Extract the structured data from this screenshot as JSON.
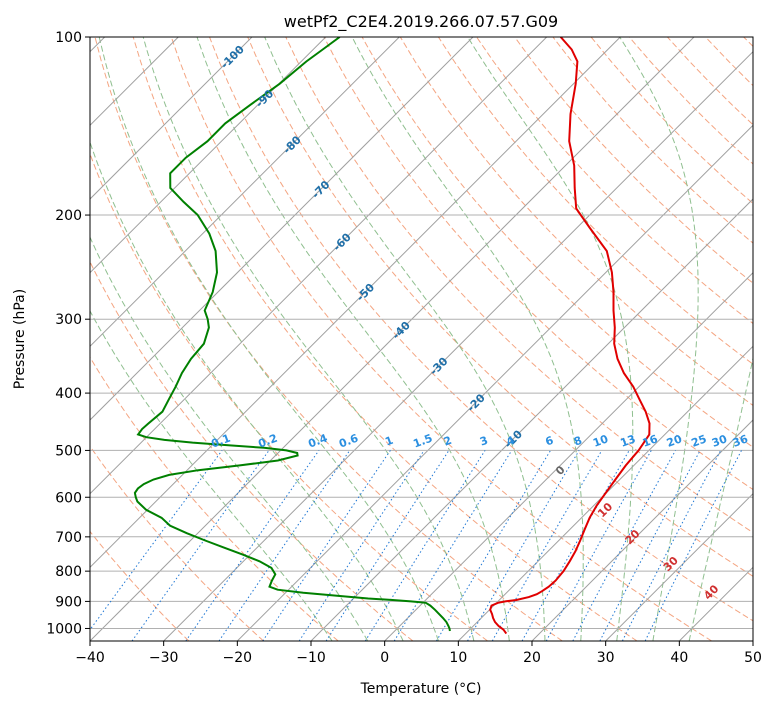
{
  "chart_data": {
    "type": "skew-t",
    "title": "wetPf2_C2E4.2019.266.07.57.G09",
    "xlabel": "Temperature (°C)",
    "ylabel": "Pressure (hPa)",
    "xlim": [
      -40,
      50
    ],
    "ylim": [
      1050,
      100
    ],
    "y_scale": "log",
    "skew": 45,
    "grid": true,
    "xticks": [
      "−40",
      "−30",
      "−20",
      "−10",
      "0",
      "10",
      "20",
      "30",
      "40",
      "50"
    ],
    "xtick_values": [
      -40,
      -30,
      -20,
      -10,
      0,
      10,
      20,
      30,
      40,
      50
    ],
    "yticks": [
      "100",
      "200",
      "300",
      "400",
      "500",
      "600",
      "700",
      "800",
      "900",
      "1000"
    ],
    "ytick_values": [
      100,
      200,
      300,
      400,
      500,
      600,
      700,
      800,
      900,
      1000
    ],
    "colors": {
      "temperature": "#e00000",
      "dewpoint": "#008000",
      "isotherm": "#a0a0a0",
      "dry_adiabat": "#f4a582",
      "moist_adiabat": "#8fbf8f",
      "mixing_ratio": "#1f77d4",
      "isotherm_label": "#1f6fa8",
      "moist_label": "#d03030"
    },
    "series": [
      {
        "name": "temperature",
        "pressure": [
          1020,
          1005,
          990,
          975,
          960,
          945,
          930,
          915,
          905,
          900,
          895,
          885,
          875,
          865,
          850,
          830,
          800,
          770,
          740,
          710,
          680,
          650,
          620,
          590,
          560,
          530,
          500,
          470,
          450,
          430,
          410,
          390,
          370,
          350,
          330,
          310,
          290,
          270,
          250,
          230,
          210,
          195,
          180,
          165,
          150,
          135,
          120,
          110,
          105,
          100
        ],
        "values": [
          15.5,
          14.6,
          13.4,
          12.4,
          11.6,
          10.9,
          10.1,
          9.7,
          10.2,
          11.0,
          12.3,
          13.6,
          14.3,
          14.6,
          14.9,
          15.0,
          14.8,
          14.3,
          13.7,
          12.9,
          12.0,
          11.1,
          10.4,
          9.9,
          9.4,
          8.9,
          8.6,
          7.9,
          6.4,
          4.3,
          1.8,
          -0.8,
          -3.9,
          -6.7,
          -9.2,
          -11.3,
          -13.8,
          -16.3,
          -19.2,
          -22.8,
          -28.3,
          -32.7,
          -35.7,
          -38.8,
          -42.8,
          -46.3,
          -49.7,
          -52.5,
          -54.9,
          -58.1
        ]
      },
      {
        "name": "dewpoint",
        "pressure": [
          1010,
          1000,
          990,
          975,
          960,
          945,
          930,
          915,
          905,
          900,
          895,
          890,
          880,
          870,
          860,
          850,
          830,
          810,
          790,
          770,
          750,
          730,
          710,
          690,
          670,
          650,
          630,
          610,
          600,
          590,
          580,
          570,
          560,
          550,
          540,
          530,
          520,
          510,
          505,
          500,
          495,
          490,
          485,
          480,
          475,
          470,
          460,
          450,
          430,
          410,
          390,
          370,
          350,
          330,
          310,
          300,
          290,
          270,
          250,
          230,
          215,
          200,
          190,
          180,
          170,
          160,
          150,
          140,
          130,
          120,
          110,
          105,
          100
        ],
        "values": [
          7.5,
          7.1,
          6.6,
          5.8,
          4.8,
          3.7,
          2.6,
          1.4,
          0.4,
          -1.8,
          -4.5,
          -8.0,
          -12.8,
          -17.6,
          -21.5,
          -23.0,
          -23.5,
          -23.9,
          -25.3,
          -27.8,
          -31.0,
          -34.5,
          -38.0,
          -41.5,
          -44.8,
          -47.0,
          -50.2,
          -52.5,
          -53.3,
          -54.0,
          -54.2,
          -54.0,
          -53.3,
          -51.8,
          -48.5,
          -43.5,
          -39.0,
          -37.0,
          -37.4,
          -39.2,
          -42.6,
          -47.8,
          -53.0,
          -57.2,
          -60.0,
          -61.5,
          -61.7,
          -61.6,
          -61.3,
          -62.1,
          -62.9,
          -63.9,
          -64.6,
          -64.9,
          -66.4,
          -67.7,
          -69.3,
          -70.7,
          -72.8,
          -75.9,
          -79.1,
          -83.2,
          -86.9,
          -90.6,
          -92.6,
          -92.6,
          -91.9,
          -91.9,
          -91.0,
          -89.9,
          -89.3,
          -88.7,
          -88.1
        ]
      }
    ],
    "isotherm_labels": [
      "-100",
      "-90",
      "-80",
      "-70",
      "-60",
      "-50",
      "-40",
      "-30",
      "-20",
      "-10"
    ],
    "isotherm_label_values": [
      -100,
      -90,
      -80,
      -70,
      -60,
      -50,
      -40,
      -30,
      -20,
      -10
    ],
    "mixing_ratio_labels": [
      "0.1",
      "0.2",
      "0.4",
      "0.6",
      "1",
      "1.5",
      "2",
      "3",
      "4",
      "6",
      "8",
      "10",
      "13",
      "16",
      "20",
      "25",
      "30",
      "36"
    ],
    "mixing_ratio_values": [
      0.1,
      0.2,
      0.4,
      0.6,
      1,
      1.5,
      2,
      3,
      4,
      6,
      8,
      10,
      13,
      16,
      20,
      25,
      30,
      36
    ],
    "moist_adiabat_labels": [
      "0",
      "10",
      "20",
      "30",
      "40"
    ],
    "moist_adiabat_values": [
      0,
      10,
      20,
      30,
      40
    ]
  }
}
